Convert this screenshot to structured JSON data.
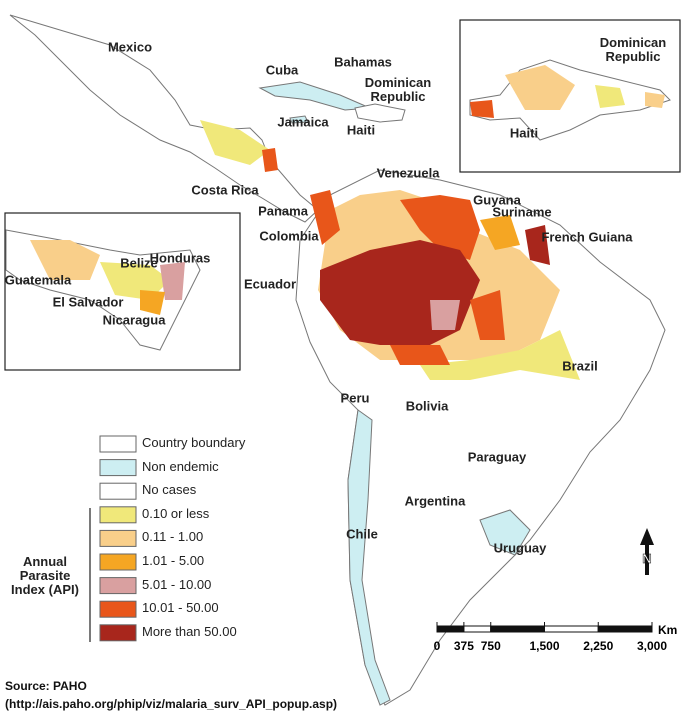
{
  "map": {
    "countries": [
      "Mexico",
      "Cuba",
      "Bahamas",
      "Dominican Republic",
      "Jamaica",
      "Haiti",
      "Costa Rica",
      "Venezuela",
      "Panama",
      "Guyana",
      "Suriname",
      "Colombia",
      "French Guiana",
      "Ecuador",
      "Brazil",
      "Peru",
      "Bolivia",
      "Paraguay",
      "Argentina",
      "Chile",
      "Uruguay"
    ],
    "insets": {
      "central_america": [
        "Belize",
        "Honduras",
        "Guatemala",
        "El Salvador",
        "Nicaragua"
      ],
      "hispaniola": [
        "Dominican Republic",
        "Haiti"
      ]
    },
    "legend": {
      "title": "Annual Parasite Index (API)",
      "items": [
        {
          "label": "Country boundary",
          "color": "#ffffff"
        },
        {
          "label": "Non endemic",
          "color": "#cdeef2"
        },
        {
          "label": "No cases",
          "color": "#ffffff"
        },
        {
          "label": "0.10 or less",
          "color": "#f0e87a"
        },
        {
          "label": "0.11 - 1.00",
          "color": "#f9cf8a"
        },
        {
          "label": "1.01 - 5.00",
          "color": "#f5a623"
        },
        {
          "label": "5.01 - 10.00",
          "color": "#d9a0a0"
        },
        {
          "label": "10.01 - 50.00",
          "color": "#e8561a"
        },
        {
          "label": "More than 50.00",
          "color": "#a8261c"
        }
      ]
    },
    "scale": {
      "unit": "Km",
      "ticks": [
        0,
        375,
        750,
        {
          "value": 1500,
          "label": "1,500"
        },
        {
          "value": 2250,
          "label": "2,250"
        },
        {
          "value": 3000,
          "label": "3,000"
        }
      ]
    },
    "north": "N",
    "source": [
      "Source: PAHO",
      "(http://ais.paho.org/phip/viz/malaria_surv_API_popup.asp)"
    ]
  }
}
